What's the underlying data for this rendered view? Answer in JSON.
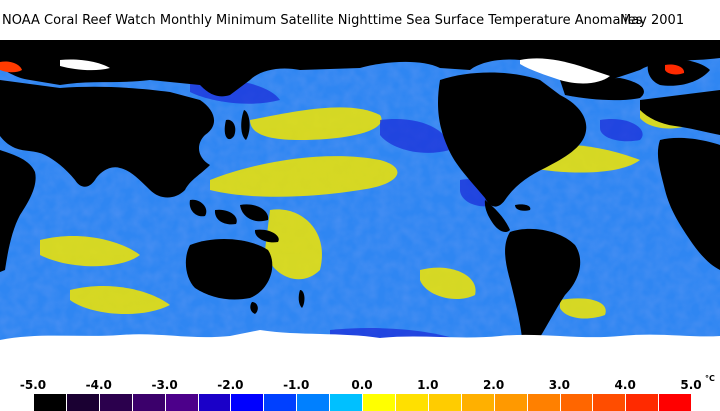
{
  "header": {
    "title": "NOAA Coral Reef Watch Monthly Minimum Satellite Nighttime Sea Surface Temperature Anomalies",
    "date": "May 2001"
  },
  "map": {
    "colors": {
      "ocean_base": "#2f86f2",
      "land": "#000000",
      "ice": "#ffffff",
      "anomaly_warm": "#f2e600",
      "anomaly_cool": "#1a2ad8"
    }
  },
  "legend": {
    "ticks": [
      "-5.0",
      "-4.0",
      "-3.0",
      "-2.0",
      "-1.0",
      "0.0",
      "1.0",
      "2.0",
      "3.0",
      "4.0",
      "5.0"
    ],
    "unit": "°C",
    "colors": [
      "#000000",
      "#1a0032",
      "#2b004d",
      "#3b006b",
      "#4c008a",
      "#1a00c8",
      "#0000ff",
      "#0040ff",
      "#0080ff",
      "#00c0ff",
      "#ffff00",
      "#ffe000",
      "#ffcc00",
      "#ffb000",
      "#ff9900",
      "#ff8000",
      "#ff6600",
      "#ff4d00",
      "#ff2a00",
      "#ff0000"
    ]
  }
}
